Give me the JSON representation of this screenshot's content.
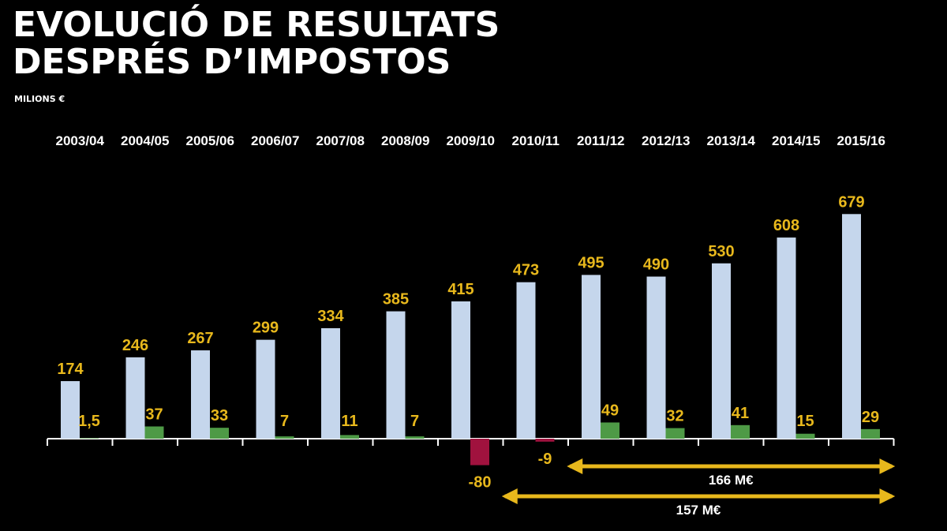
{
  "title_line1": "EVOLUCIÓ DE RESULTATS",
  "title_line2": "DESPRÉS D’IMPOSTOS",
  "subtitle": "MILIONS €",
  "colors": {
    "revenue": "#c5d6ec",
    "profit": "#4e9a46",
    "loss": "#a0123e",
    "labels": "#e8b81c",
    "arrows": "#e8b81c",
    "axis": "#ffffff"
  },
  "chart_data": {
    "type": "bar",
    "categories": [
      "2003/04",
      "2004/05",
      "2005/06",
      "2006/07",
      "2007/08",
      "2008/09",
      "2009/10",
      "2010/11",
      "2011/12",
      "2012/13",
      "2013/14",
      "2014/15",
      "2015/16"
    ],
    "series": [
      {
        "values": [
          174,
          246,
          267,
          299,
          334,
          385,
          415,
          473,
          495,
          490,
          530,
          608,
          679
        ],
        "labels": [
          "174",
          "246",
          "267",
          "299",
          "334",
          "385",
          "415",
          "473",
          "495",
          "490",
          "530",
          "608",
          "679"
        ]
      },
      {
        "values": [
          1.5,
          37,
          33,
          7,
          11,
          7,
          -80,
          -9,
          49,
          32,
          41,
          15,
          29
        ],
        "labels": [
          "1,5",
          "37",
          "33",
          "7",
          "11",
          "7",
          "-80",
          "-9",
          "49",
          "32",
          "41",
          "15",
          "29"
        ]
      }
    ],
    "annotations": [
      {
        "text": "166 M€",
        "from": "2011/12",
        "to": "2015/16"
      },
      {
        "text": "157 M€",
        "from": "2010/11",
        "to": "2015/16"
      }
    ],
    "grid": false,
    "legend": "none"
  }
}
